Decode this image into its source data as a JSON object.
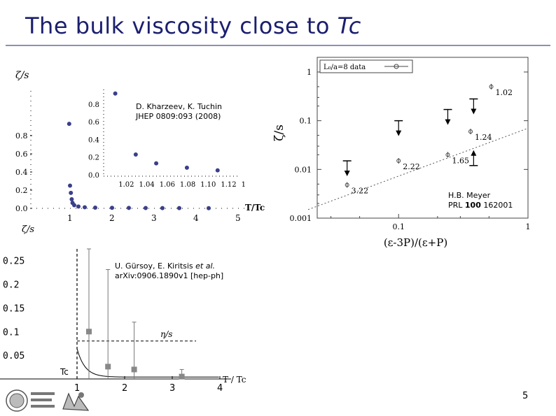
{
  "slide": {
    "title_main": "The bulk viscosity close to ",
    "title_em": "Tc",
    "page_number": "5"
  },
  "colors": {
    "title": "#1b1f6e",
    "dots": "#3a3f8a",
    "squares": "#888888"
  },
  "annotations": {
    "kharzeev": {
      "line1": "D. Kharzeev, K. Tuchin",
      "line2": "JHEP 0809:093 (2008)"
    },
    "gursoy": {
      "line1_pre": "U. Gürsoy, E. Kiritsis ",
      "line1_em": "et al.",
      "line2": "arXiv:0906.1890v1 [hep-ph]"
    },
    "meyer": {
      "line1": "H.B. Meyer",
      "line2_pre": "PRL ",
      "line2_bold": "100",
      "line2_post": " 162001"
    }
  },
  "chart_data": [
    {
      "type": "scatter",
      "ylabel": "ζ/s",
      "xlabel": "T/Tc",
      "xlim": [
        0.6,
        5.2
      ],
      "ylim": [
        0,
        1.0
      ],
      "xticks": [
        "1",
        "2",
        "3",
        "4",
        "5"
      ],
      "yticks": [
        "0.0",
        "0.2",
        "0.4",
        "0.6",
        "0.8"
      ],
      "series": [
        {
          "x": [
            0.98,
            1.0,
            1.02,
            1.04,
            1.06,
            1.1,
            1.2,
            1.35,
            1.6,
            2.0,
            2.4,
            2.8,
            3.2,
            3.6,
            4.3
          ],
          "y": [
            0.93,
            0.25,
            0.17,
            0.1,
            0.06,
            0.035,
            0.02,
            0.012,
            0.008,
            0.006,
            0.005,
            0.004,
            0.003,
            0.003,
            0.002
          ]
        }
      ],
      "inset": {
        "xlim": [
          1.0,
          1.13
        ],
        "ylim": [
          0,
          0.95
        ],
        "xticks": [
          "1.02",
          "1.04",
          "1.06",
          "1.08",
          "1.10",
          "1.12",
          "1"
        ],
        "yticks": [
          "0.8",
          "0.6",
          "0.4",
          "0.2",
          "0.0"
        ],
        "x": [
          1.01,
          1.03,
          1.05,
          1.08,
          1.11
        ],
        "y": [
          0.92,
          0.23,
          0.13,
          0.08,
          0.05
        ]
      }
    },
    {
      "type": "scatter",
      "xlabel": "(ε-3P)/(ε+P)",
      "ylabel": "ζ/s",
      "scale": "log-log",
      "xlim": [
        0.02,
        1
      ],
      "ylim": [
        0.001,
        2
      ],
      "xticks": [
        "0.1",
        "1"
      ],
      "yticks": [
        "1",
        "0.1",
        "0.01",
        "0.001"
      ],
      "legend": "L₀/a=8  data",
      "points": [
        {
          "x": 0.04,
          "y": 0.0048,
          "label": "3.22"
        },
        {
          "x": 0.1,
          "y": 0.015,
          "label": "2.22"
        },
        {
          "x": 0.24,
          "y": 0.02,
          "label": "1.65"
        },
        {
          "x": 0.36,
          "y": 0.06,
          "label": "1.24"
        },
        {
          "x": 0.52,
          "y": 0.5,
          "label": "1.02"
        }
      ],
      "upper_limits": [
        {
          "x": 0.04,
          "y": 0.015
        },
        {
          "x": 0.1,
          "y": 0.1
        },
        {
          "x": 0.24,
          "y": 0.17
        },
        {
          "x": 0.38,
          "y": 0.28
        }
      ],
      "lower_limits": [
        {
          "x": 0.38,
          "y": 0.012
        }
      ],
      "dotted_line": {
        "x": [
          0.02,
          1
        ],
        "y": [
          0.0015,
          0.07
        ]
      }
    },
    {
      "type": "scatter",
      "ylabel": "ζ/s",
      "xlabel": "T / Tc",
      "xlim": [
        0.0,
        4.2
      ],
      "ylim": [
        0,
        0.31
      ],
      "xticks": [
        "1",
        "2",
        "3",
        "4"
      ],
      "yticks": [
        "0.25",
        "0.2",
        "0.15",
        "0.1",
        "0.05"
      ],
      "curve_label": "η/s",
      "tc_label": "Tc",
      "eta_over_s": 0.08,
      "points": [
        {
          "x": 1.25,
          "y": 0.1,
          "err_lo": 0.1,
          "err_hi": 0.3
        },
        {
          "x": 1.65,
          "y": 0.026,
          "err_lo": 0.026,
          "err_hi": 0.205
        },
        {
          "x": 2.2,
          "y": 0.02,
          "err_lo": 0.02,
          "err_hi": 0.1
        },
        {
          "x": 3.2,
          "y": 0.005,
          "err_lo": 0.005,
          "err_hi": 0.015
        }
      ]
    }
  ]
}
